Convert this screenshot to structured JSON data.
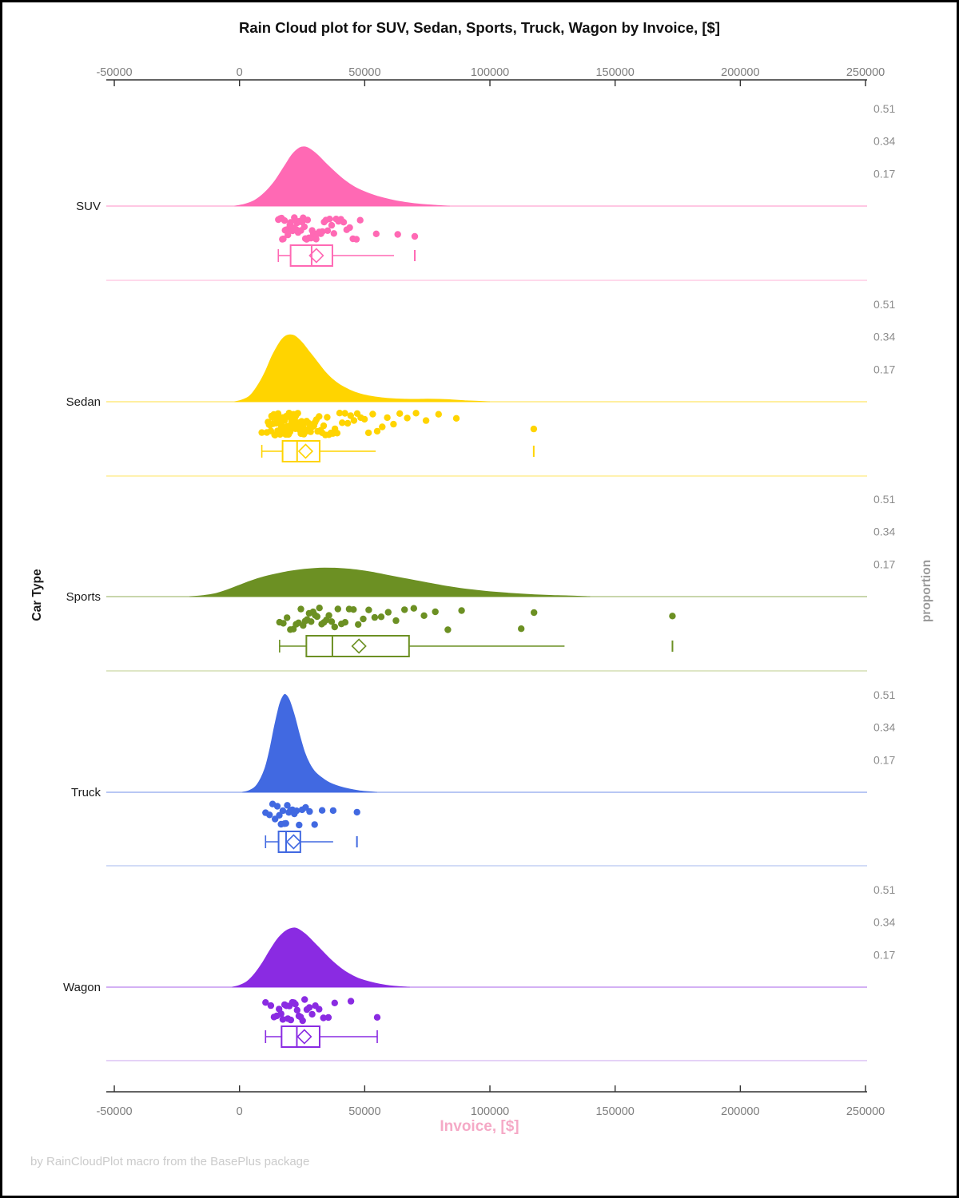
{
  "title": "Rain Cloud plot for SUV, Sedan, Sports, Truck, Wagon by Invoice, [$]",
  "footer": "by RainCloudPlot macro from the BasePlus package",
  "axes": {
    "x": {
      "label": "Invoice, [$]",
      "label_color": "#f5a9c6",
      "ticks": [
        -50000,
        0,
        50000,
        100000,
        150000,
        200000,
        250000
      ],
      "tick_labels": [
        "-50000",
        "0",
        "50000",
        "100000",
        "150000",
        "200000",
        "250000"
      ],
      "range": [
        -53000,
        253000
      ]
    },
    "y_left": {
      "label": "Car Type",
      "categories": [
        "SUV",
        "Sedan",
        "Sports",
        "Truck",
        "Wagon"
      ]
    },
    "y_right": {
      "label": "proportion",
      "ticks": [
        0.17,
        0.34,
        0.51
      ],
      "tick_labels": [
        "0.17",
        "0.34",
        "0.51"
      ]
    }
  },
  "chart_data": {
    "type": "raincloud",
    "title": "Rain Cloud plot for SUV, Sedan, Sports, Truck, Wagon by Invoice, [$]",
    "xlabel": "Invoice, [$]",
    "ylabel_left": "Car Type",
    "ylabel_right": "proportion",
    "x_range": [
      -53000,
      253000
    ],
    "proportion_ticks": [
      0.17,
      0.34,
      0.51
    ],
    "grid": false,
    "legend": "none",
    "series": [
      {
        "name": "SUV",
        "color": "#FF69B4",
        "color_light": "#FFC2DF",
        "density": {
          "x": [
            -2000,
            2000,
            6000,
            10000,
            14000,
            18000,
            21000,
            24000,
            26000,
            28000,
            31000,
            34000,
            38000,
            42000,
            46000,
            50000,
            55000,
            60000,
            65000,
            70000,
            75000,
            80000,
            84000
          ],
          "h": [
            0,
            0.01,
            0.03,
            0.07,
            0.13,
            0.21,
            0.27,
            0.305,
            0.31,
            0.3,
            0.27,
            0.23,
            0.18,
            0.135,
            0.1,
            0.075,
            0.052,
            0.035,
            0.022,
            0.013,
            0.007,
            0.003,
            0
          ]
        },
        "rain": [
          15500,
          16200,
          16800,
          17100,
          17500,
          18000,
          18200,
          18600,
          19000,
          19300,
          19700,
          20100,
          20400,
          20800,
          21200,
          21500,
          21900,
          22300,
          22600,
          23000,
          23400,
          23800,
          24100,
          24500,
          25000,
          25400,
          25900,
          26300,
          26800,
          27200,
          27700,
          28100,
          28600,
          29000,
          29500,
          30100,
          30600,
          31200,
          31800,
          32500,
          33100,
          33800,
          34500,
          35200,
          36000,
          36800,
          37700,
          38600,
          39500,
          40500,
          41600,
          42800,
          44000,
          45300,
          46700,
          48200,
          54600,
          63200,
          70000
        ],
        "box": {
          "min": 15500,
          "q1": 20400,
          "median": 28800,
          "mean": 30700,
          "q3": 37100,
          "whisker_high": 61700,
          "outliers": [
            70000
          ]
        }
      },
      {
        "name": "Sedan",
        "color": "#FFD400",
        "color_light": "#FFEB80",
        "density": {
          "x": [
            -2000,
            1000,
            4000,
            7000,
            10000,
            13000,
            16000,
            18000,
            20000,
            22000,
            25000,
            28000,
            31000,
            34000,
            37000,
            40000,
            44000,
            48000,
            52000,
            56000,
            60000,
            65000,
            70000,
            75000,
            80000,
            85000,
            90000,
            95000,
            100000
          ],
          "h": [
            0,
            0.01,
            0.03,
            0.08,
            0.15,
            0.24,
            0.31,
            0.34,
            0.35,
            0.345,
            0.31,
            0.26,
            0.21,
            0.16,
            0.12,
            0.09,
            0.062,
            0.042,
            0.03,
            0.022,
            0.017,
            0.014,
            0.013,
            0.014,
            0.013,
            0.01,
            0.006,
            0.003,
            0
          ]
        },
        "rain": [
          8900,
          10900,
          11400,
          11800,
          12200,
          12500,
          12800,
          13100,
          13400,
          13700,
          14000,
          14200,
          14500,
          14700,
          15000,
          15200,
          15400,
          15600,
          15800,
          16000,
          16200,
          16400,
          16600,
          16800,
          17000,
          17200,
          17400,
          17600,
          17800,
          18000,
          18200,
          18400,
          18600,
          18800,
          19000,
          19200,
          19400,
          19600,
          19800,
          20000,
          20200,
          20400,
          20600,
          20800,
          21000,
          21300,
          21500,
          21800,
          22000,
          22300,
          22500,
          22800,
          23000,
          23300,
          23600,
          23900,
          24200,
          24500,
          24800,
          25100,
          25400,
          25700,
          26000,
          26400,
          26800,
          27200,
          27600,
          28000,
          28400,
          28800,
          29200,
          29700,
          30200,
          30700,
          31200,
          31800,
          32400,
          33000,
          33600,
          34300,
          35000,
          35700,
          36500,
          37300,
          38100,
          39000,
          40000,
          41000,
          42100,
          43200,
          44400,
          45700,
          47000,
          48400,
          49900,
          51500,
          53200,
          55000,
          57000,
          59000,
          61500,
          64000,
          67000,
          70500,
          74500,
          79500,
          86600,
          117500
        ],
        "box": {
          "min": 8900,
          "q1": 17200,
          "median": 23000,
          "mean": 26400,
          "q3": 32000,
          "whisker_high": 54400,
          "outliers": [
            117500
          ]
        }
      },
      {
        "name": "Sports",
        "color": "#6C9023",
        "color_light": "#CBD7A3",
        "density": {
          "x": [
            -20000,
            -15000,
            -10000,
            -5000,
            0,
            5000,
            10000,
            15000,
            20000,
            25000,
            30000,
            34000,
            38000,
            43000,
            48000,
            53000,
            58000,
            64000,
            70000,
            76000,
            82000,
            88000,
            95000,
            102000,
            110000,
            118000,
            126000,
            134000,
            140000
          ],
          "h": [
            0,
            0.005,
            0.015,
            0.035,
            0.06,
            0.085,
            0.105,
            0.12,
            0.133,
            0.142,
            0.148,
            0.15,
            0.149,
            0.145,
            0.138,
            0.128,
            0.115,
            0.1,
            0.085,
            0.07,
            0.056,
            0.044,
            0.033,
            0.024,
            0.016,
            0.01,
            0.006,
            0.003,
            0
          ]
        },
        "rain": [
          16000,
          17500,
          19000,
          20300,
          21500,
          22600,
          23600,
          24500,
          25400,
          26200,
          27000,
          27800,
          28600,
          29400,
          30200,
          31000,
          31900,
          32800,
          33700,
          34700,
          35700,
          36800,
          38000,
          39300,
          40700,
          42200,
          43800,
          45500,
          47400,
          49400,
          51600,
          54000,
          56600,
          59400,
          62500,
          65900,
          69600,
          73700,
          78200,
          83200,
          88700,
          112500,
          117600,
          172900
        ],
        "box": {
          "min": 16000,
          "q1": 26700,
          "median": 37100,
          "mean": 47700,
          "q3": 67700,
          "whisker_high": 129800,
          "outliers": [
            172900
          ]
        }
      },
      {
        "name": "Truck",
        "color": "#4169E1",
        "color_light": "#B6C6F2",
        "density": {
          "x": [
            1000,
            4000,
            7000,
            10000,
            12000,
            14000,
            16000,
            17500,
            18500,
            20000,
            22000,
            24000,
            26000,
            28000,
            30000,
            33000,
            36000,
            40000,
            44000,
            48000,
            52000,
            55000
          ],
          "h": [
            0,
            0.01,
            0.04,
            0.12,
            0.22,
            0.35,
            0.46,
            0.505,
            0.51,
            0.48,
            0.4,
            0.3,
            0.21,
            0.15,
            0.11,
            0.075,
            0.05,
            0.03,
            0.017,
            0.008,
            0.003,
            0
          ]
        },
        "rain": [
          10400,
          12000,
          13200,
          14200,
          15100,
          15900,
          16600,
          17300,
          17900,
          18500,
          19100,
          19700,
          20400,
          21100,
          21900,
          22800,
          23800,
          25000,
          26400,
          28000,
          30000,
          33000,
          37400,
          46900
        ],
        "box": {
          "min": 10400,
          "q1": 15600,
          "median": 18600,
          "mean": 21600,
          "q3": 24300,
          "whisker_high": 37400,
          "outliers": [
            46900
          ]
        }
      },
      {
        "name": "Wagon",
        "color": "#8A2BE2",
        "color_light": "#D5B6F2",
        "density": {
          "x": [
            -3000,
            0,
            3000,
            6000,
            9000,
            12000,
            15000,
            18000,
            20000,
            22000,
            24000,
            27000,
            30000,
            33000,
            36000,
            39000,
            42000,
            45000,
            48000,
            52000,
            56000,
            60000,
            64000,
            68000
          ],
          "h": [
            0,
            0.01,
            0.03,
            0.07,
            0.125,
            0.19,
            0.25,
            0.29,
            0.305,
            0.31,
            0.3,
            0.27,
            0.23,
            0.19,
            0.15,
            0.115,
            0.085,
            0.062,
            0.044,
            0.028,
            0.016,
            0.008,
            0.003,
            0
          ]
        },
        "rain": [
          10400,
          12500,
          13800,
          14900,
          15800,
          16600,
          17300,
          18000,
          18700,
          19300,
          19900,
          20500,
          21100,
          21700,
          22300,
          23000,
          23700,
          24400,
          25200,
          26000,
          26900,
          27900,
          29000,
          30300,
          31800,
          33500,
          35500,
          38000,
          44500,
          55000
        ],
        "box": {
          "min": 10400,
          "q1": 16800,
          "median": 22900,
          "mean": 25900,
          "q3": 32000,
          "whisker_high": 55000,
          "outliers": []
        }
      }
    ]
  }
}
